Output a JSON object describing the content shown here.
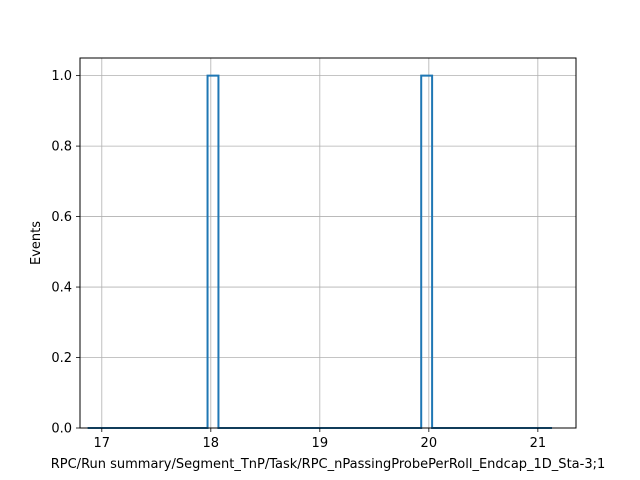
{
  "chart_data": {
    "type": "histogram-step",
    "xlabel": "RPC/Run summary/Segment_TnP/Task/RPC_nPassingProbePerRoll_Endcap_1D_Sta-3;1",
    "ylabel": "Events",
    "xlim": [
      16.8,
      21.35
    ],
    "ylim": [
      0,
      1.05
    ],
    "xticks": [
      17,
      18,
      19,
      20,
      21
    ],
    "xtick_labels": [
      "17",
      "18",
      "19",
      "20",
      "21"
    ],
    "yticks": [
      0.0,
      0.2,
      0.4,
      0.6,
      0.8,
      1.0
    ],
    "ytick_labels": [
      "0.0",
      "0.2",
      "0.4",
      "0.6",
      "0.8",
      "1.0"
    ],
    "grid": true,
    "line_color": "#1f77b4",
    "bin_edges": [
      16.87,
      17.97,
      18.07,
      19.93,
      20.03,
      21.13
    ],
    "counts": [
      0,
      1,
      0,
      1,
      0
    ]
  }
}
